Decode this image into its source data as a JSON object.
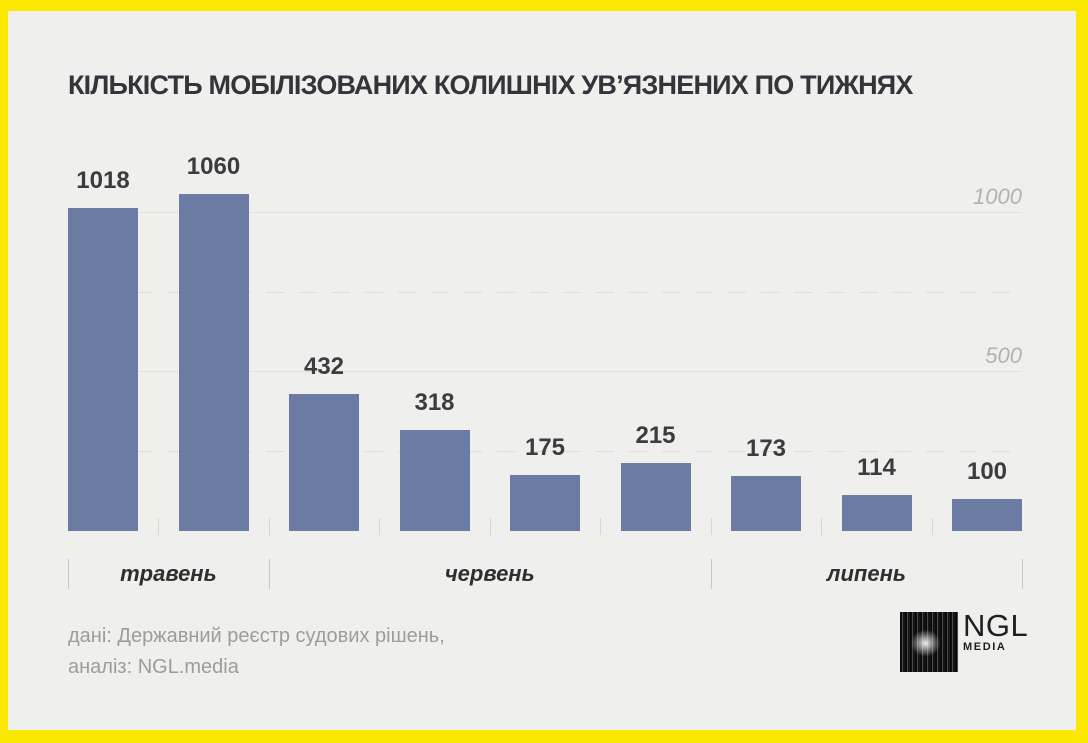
{
  "title": "КІЛЬКІСТЬ МОБІЛІЗОВАНИХ КОЛИШНІХ УВ’ЯЗНЕНИХ ПО ТИЖНЯХ",
  "chart_data": {
    "type": "bar",
    "values": [
      1018,
      1060,
      432,
      318,
      175,
      215,
      173,
      114,
      100
    ],
    "bar_labels": [
      "1018",
      "1060",
      "432",
      "318",
      "175",
      "215",
      "173",
      "114",
      "100"
    ],
    "month_groups": [
      {
        "label": "травень",
        "bars": 2
      },
      {
        "label": "червень",
        "bars": 4
      },
      {
        "label": "липень",
        "bars": 3
      }
    ],
    "gridlines_solid": [
      {
        "value": 1000,
        "label": "1000"
      },
      {
        "value": 500,
        "label": "500"
      }
    ],
    "gridlines_dashed": [
      750,
      250
    ],
    "ylim": [
      0,
      1070
    ],
    "bar_color": "#6C7BA3",
    "legend": "none",
    "xlabel": "",
    "ylabel": ""
  },
  "footer": {
    "line1": "дані: Державний реєстр судових рішень,",
    "line2": "аналіз: NGL.media"
  },
  "logo": {
    "name": "NGL",
    "sub": "MEDIA"
  },
  "colors": {
    "frame": "#FAE800",
    "background": "#EFEFED",
    "bar": "#6C7BA3",
    "title_text": "#33353B",
    "value_text": "#3C3C3C",
    "grid_label": "#B2B2B0",
    "footer_text": "#9C9C9A"
  }
}
